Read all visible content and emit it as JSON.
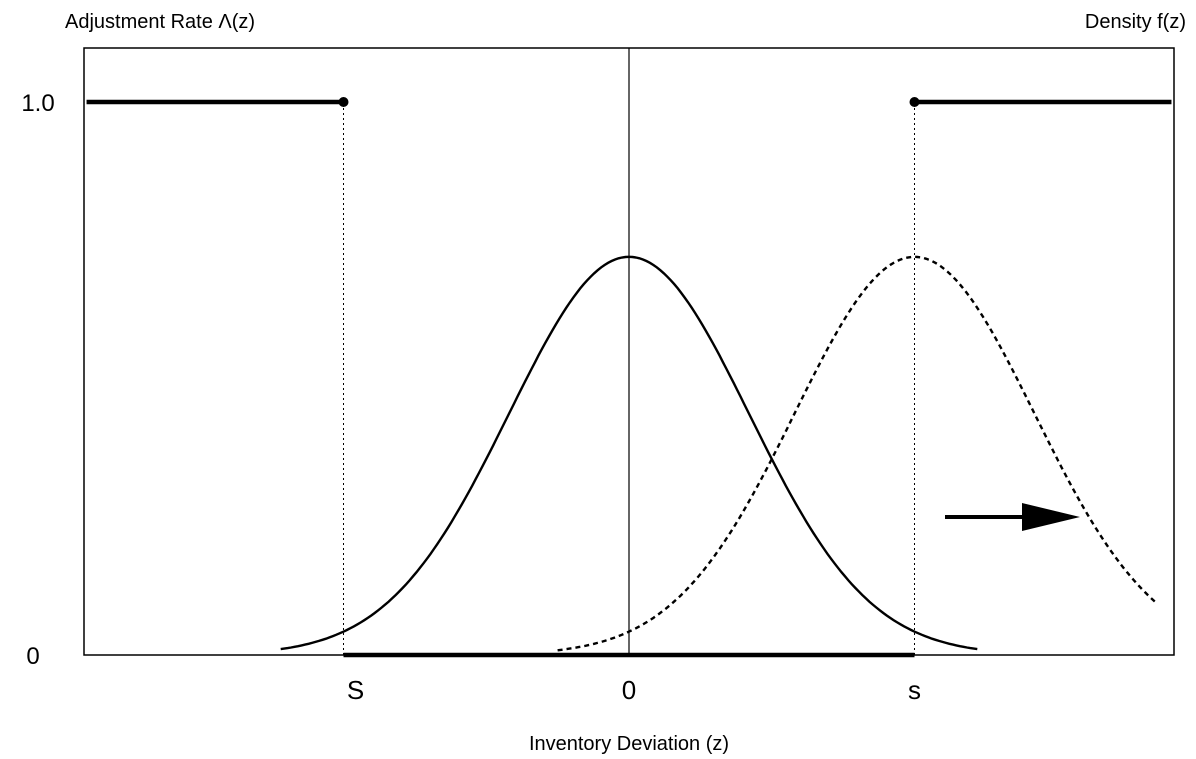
{
  "chart_data": {
    "type": "line",
    "title": "",
    "left_axis_label": "Adjustment Rate Λ(z)",
    "right_axis_label": "Density f(z)",
    "xlabel": "Inventory Deviation (z)",
    "x_ticks": [
      {
        "label": "S",
        "value": -1
      },
      {
        "label": "0",
        "value": 0
      },
      {
        "label": "s",
        "value": 1
      }
    ],
    "y_ticks": [
      {
        "label": "0",
        "value": 0
      },
      {
        "label": "1.0",
        "value": 1
      }
    ],
    "xlim": [
      -1.9,
      1.9
    ],
    "ylim": [
      0,
      1.2
    ],
    "grid": false,
    "colors": {
      "line": "#000000",
      "background": "#ffffff"
    },
    "adjustment_rate": {
      "segments": [
        {
          "x": [
            -1.9,
            -1
          ],
          "y": 1
        },
        {
          "x": [
            -1,
            1
          ],
          "y": 0
        },
        {
          "x": [
            1,
            1.9
          ],
          "y": 1
        }
      ],
      "breakpoints": [
        {
          "x": -1,
          "y": 1
        },
        {
          "x": 1,
          "y": 1
        }
      ]
    },
    "series": [
      {
        "style": "solid",
        "center": 0,
        "sd": 0.42,
        "peak": 0.72,
        "x_range": [
          -1.22,
          1.22
        ]
      },
      {
        "style": "dashed",
        "center": 1,
        "sd": 0.42,
        "peak": 0.72,
        "x_range": [
          -0.25,
          1.85
        ]
      }
    ],
    "reference_lines": [
      {
        "x": 0,
        "style": "solid"
      },
      {
        "x": -1,
        "style": "dotted"
      },
      {
        "x": 1,
        "style": "dotted"
      }
    ],
    "arrow": {
      "direction": "right"
    }
  }
}
